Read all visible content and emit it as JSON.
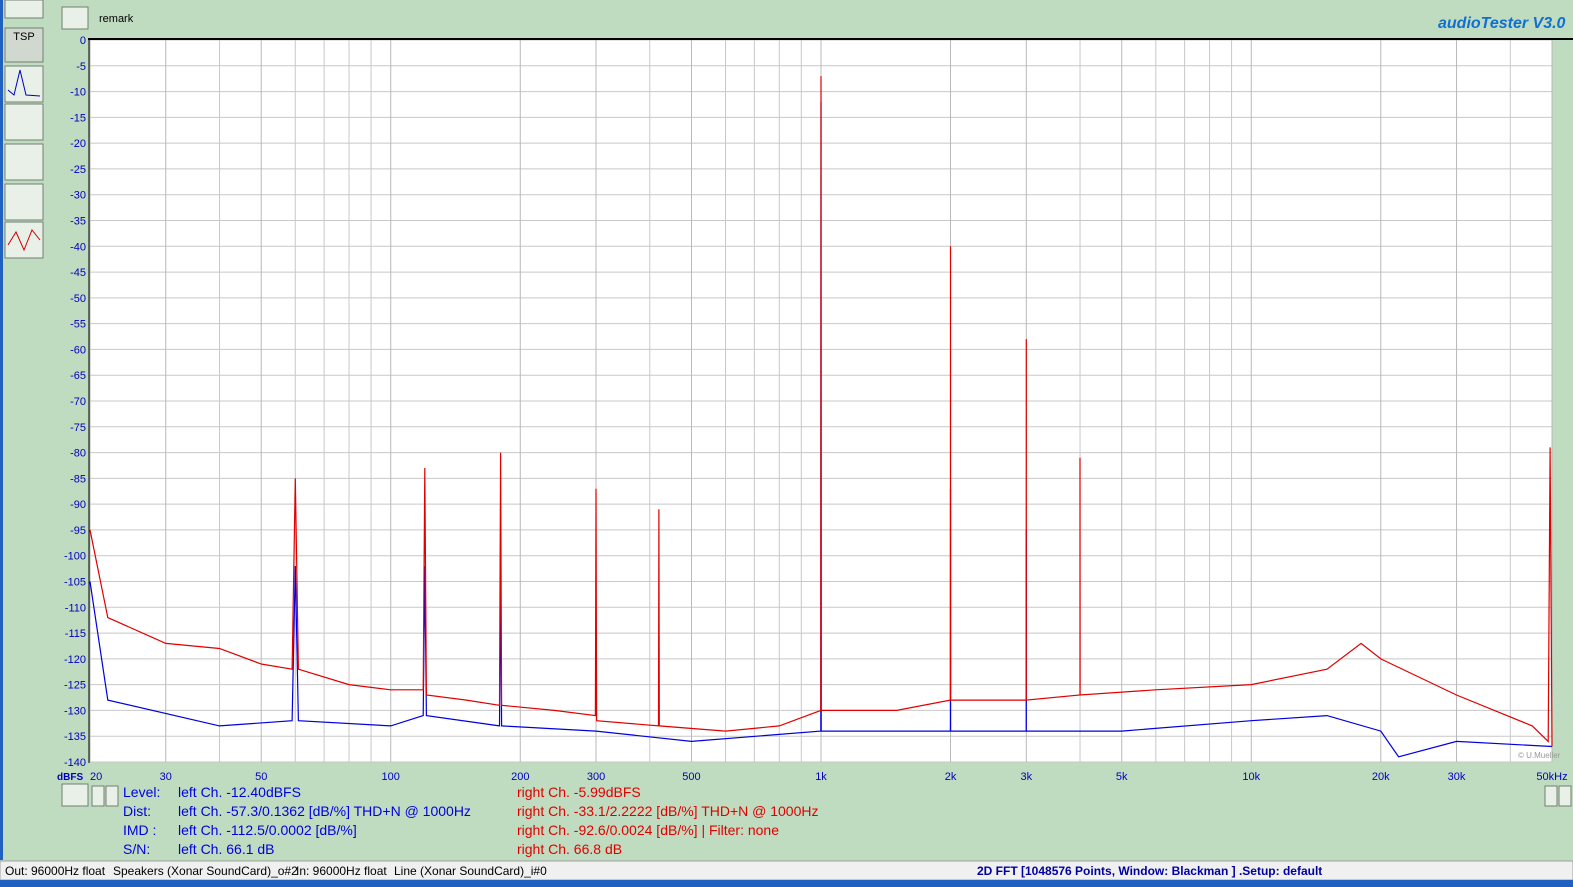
{
  "chart_data": {
    "type": "line",
    "x_scale": "log",
    "y_axis_label": "dBFS",
    "xlim": [
      20,
      50000
    ],
    "ylim": [
      -140,
      0
    ],
    "xticks": [
      20,
      30,
      50,
      100,
      200,
      300,
      500,
      {
        "value": 1000,
        "label": "1k"
      },
      {
        "value": 2000,
        "label": "2k"
      },
      {
        "value": 3000,
        "label": "3k"
      },
      {
        "value": 5000,
        "label": "5k"
      },
      {
        "value": 10000,
        "label": "10k"
      },
      {
        "value": 20000,
        "label": "20k"
      },
      {
        "value": 30000,
        "label": "30k"
      },
      {
        "value": 50000,
        "label": "50kHz"
      }
    ],
    "xminorticks": [
      40,
      60,
      70,
      80,
      90,
      400,
      600,
      700,
      800,
      900,
      4000,
      6000,
      7000,
      8000,
      9000,
      40000
    ],
    "yticks": [
      0,
      -5,
      -10,
      -15,
      -20,
      -25,
      -30,
      -35,
      -40,
      -45,
      -50,
      -55,
      -60,
      -65,
      -70,
      -75,
      -80,
      -85,
      -90,
      -95,
      -100,
      -105,
      -110,
      -115,
      -120,
      -125,
      -130,
      -135,
      -140
    ],
    "grid": true,
    "series": [
      {
        "name": "left Ch.",
        "color": "#0000e0",
        "x": [
          20,
          22,
          40,
          59,
          60,
          61,
          100,
          119,
          120,
          121,
          179,
          180,
          181,
          300,
          500,
          999,
          1000,
          1001,
          1999,
          2000,
          2001,
          2999,
          3000,
          3001,
          5000,
          10000,
          15000,
          20000,
          22000,
          30000,
          50000
        ],
        "values": [
          -105,
          -128,
          -133,
          -132,
          -102,
          -132,
          -133,
          -131,
          -102,
          -131,
          -133,
          -104,
          -133,
          -134,
          -136,
          -134,
          -12,
          -134,
          -134,
          -87,
          -134,
          -134,
          -95,
          -134,
          -134,
          -132,
          -131,
          -134,
          -139,
          -136,
          -137
        ]
      },
      {
        "name": "right Ch.",
        "color": "#e00000",
        "x": [
          20,
          22,
          30,
          40,
          50,
          59,
          60,
          61,
          80,
          100,
          119,
          120,
          121,
          150,
          179,
          180,
          181,
          240,
          299,
          300,
          301,
          419,
          420,
          421,
          600,
          800,
          999,
          1000,
          1001,
          1500,
          1999,
          2000,
          2001,
          2999,
          3000,
          3001,
          3999,
          4000,
          4001,
          6000,
          10000,
          15000,
          18000,
          20000,
          30000,
          45000,
          49000,
          49500,
          50000
        ],
        "values": [
          -95,
          -112,
          -117,
          -118,
          -121,
          -122,
          -85,
          -122,
          -125,
          -126,
          -126,
          -83,
          -127,
          -128,
          -129,
          -80,
          -129,
          -130,
          -131,
          -87,
          -132,
          -133,
          -91,
          -133,
          -134,
          -133,
          -130,
          -7,
          -130,
          -130,
          -128,
          -40,
          -128,
          -128,
          -58,
          -128,
          -127,
          -81,
          -127,
          -126,
          -125,
          -122,
          -117,
          -120,
          -127,
          -133,
          -136,
          -79,
          -137
        ]
      }
    ]
  },
  "ui": {
    "remark": "remark",
    "app_title": "audioTester  V3.0",
    "tsp": "TSP",
    "copyright": "© U.Mueller",
    "readout": [
      {
        "label": "Level:",
        "left": "left Ch. -12.40dBFS",
        "right": "right Ch. -5.99dBFS"
      },
      {
        "label": "Dist:",
        "left": "left Ch. -57.3/0.1362 [dB/%] THD+N  @ 1000Hz",
        "right": "right Ch. -33.1/2.2222 [dB/%] THD+N  @ 1000Hz"
      },
      {
        "label": "IMD  :",
        "left": "left Ch. -112.5/0.0002 [dB/%]",
        "right": "right Ch. -92.6/0.0024 [dB/%] |   Filter: none"
      },
      {
        "label": "S/N:",
        "left": "left Ch. 66.1 dB",
        "right": "right Ch. 66.8 dB"
      }
    ],
    "status": [
      "Out: 96000Hz float",
      "Speakers (Xonar SoundCard)_o#2",
      "In: 96000Hz float",
      "Line (Xonar SoundCard)_i#0"
    ],
    "status_info": "2D FFT [1048576 Points, Window: Blackman ]  .Setup:  default"
  }
}
